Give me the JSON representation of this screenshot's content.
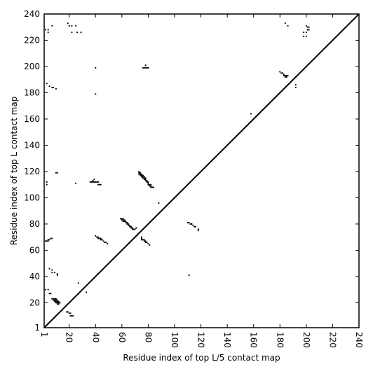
{
  "chart_data": {
    "type": "scatter",
    "title": "",
    "xlabel": "Residue index of top L/5 contact map",
    "ylabel": "Residue index of top L contact map",
    "xlim": [
      1,
      240
    ],
    "ylim": [
      1,
      240
    ],
    "x_ticks": [
      1,
      20,
      40,
      60,
      80,
      100,
      120,
      140,
      160,
      180,
      200,
      220,
      240
    ],
    "y_ticks": [
      1,
      20,
      40,
      60,
      80,
      100,
      120,
      140,
      160,
      180,
      200,
      220,
      240
    ],
    "grid": false,
    "marker": "square",
    "marker_color": "#000000",
    "diagonal_line": true,
    "series": [
      {
        "points": [
          [
            2,
            228
          ],
          [
            4,
            228
          ],
          [
            4,
            226
          ],
          [
            7,
            231
          ],
          [
            19,
            233
          ],
          [
            20,
            231
          ],
          [
            22,
            231
          ],
          [
            22,
            226
          ],
          [
            25,
            231
          ],
          [
            26,
            226
          ],
          [
            29,
            226
          ],
          [
            40,
            199
          ],
          [
            40,
            179
          ],
          [
            3,
            187
          ],
          [
            5,
            185
          ],
          [
            7,
            184
          ],
          [
            8,
            184
          ],
          [
            10,
            183
          ],
          [
            76,
            199
          ],
          [
            77,
            199
          ],
          [
            78,
            199
          ],
          [
            79,
            199
          ],
          [
            80,
            199
          ],
          [
            78,
            201
          ],
          [
            180,
            196
          ],
          [
            181,
            195
          ],
          [
            182,
            195
          ],
          [
            183,
            194
          ],
          [
            183,
            193
          ],
          [
            184,
            193
          ],
          [
            185,
            193
          ],
          [
            186,
            193
          ],
          [
            184,
            192
          ],
          [
            185,
            192
          ],
          [
            192,
            184
          ],
          [
            192,
            186
          ],
          [
            184,
            233
          ],
          [
            186,
            231
          ],
          [
            198,
            223
          ],
          [
            198,
            226
          ],
          [
            200,
            223
          ],
          [
            200,
            226
          ],
          [
            200,
            231
          ],
          [
            201,
            230
          ],
          [
            202,
            230
          ],
          [
            201,
            228
          ],
          [
            202,
            228
          ],
          [
            158,
            164
          ],
          [
            10,
            119
          ],
          [
            11,
            119
          ],
          [
            3,
            112
          ],
          [
            3,
            110
          ],
          [
            25,
            111
          ],
          [
            36,
            112
          ],
          [
            37,
            112
          ],
          [
            38,
            112
          ],
          [
            39,
            112
          ],
          [
            40,
            112
          ],
          [
            41,
            112
          ],
          [
            42,
            112
          ],
          [
            38,
            113
          ],
          [
            39,
            114
          ],
          [
            42,
            110
          ],
          [
            43,
            110
          ],
          [
            44,
            110
          ],
          [
            73,
            120
          ],
          [
            73,
            119
          ],
          [
            73,
            118
          ],
          [
            74,
            119
          ],
          [
            74,
            118
          ],
          [
            74,
            117
          ],
          [
            75,
            118
          ],
          [
            75,
            117
          ],
          [
            75,
            116
          ],
          [
            76,
            117
          ],
          [
            76,
            116
          ],
          [
            76,
            115
          ],
          [
            77,
            116
          ],
          [
            77,
            115
          ],
          [
            77,
            114
          ],
          [
            78,
            115
          ],
          [
            78,
            114
          ],
          [
            78,
            113
          ],
          [
            79,
            113
          ],
          [
            79,
            112
          ],
          [
            80,
            112
          ],
          [
            80,
            111
          ],
          [
            80,
            110
          ],
          [
            81,
            110
          ],
          [
            81,
            109
          ],
          [
            82,
            110
          ],
          [
            82,
            109
          ],
          [
            82,
            108
          ],
          [
            83,
            108
          ],
          [
            84,
            108
          ],
          [
            88,
            96
          ],
          [
            59,
            84
          ],
          [
            60,
            84
          ],
          [
            61,
            84
          ],
          [
            60,
            83
          ],
          [
            61,
            83
          ],
          [
            62,
            83
          ],
          [
            61,
            82
          ],
          [
            62,
            82
          ],
          [
            63,
            82
          ],
          [
            63,
            81
          ],
          [
            64,
            81
          ],
          [
            64,
            80
          ],
          [
            65,
            80
          ],
          [
            65,
            79
          ],
          [
            66,
            79
          ],
          [
            66,
            78
          ],
          [
            67,
            78
          ],
          [
            67,
            77
          ],
          [
            68,
            77
          ],
          [
            68,
            76
          ],
          [
            69,
            76
          ],
          [
            70,
            76
          ],
          [
            71,
            77
          ],
          [
            110,
            81
          ],
          [
            111,
            81
          ],
          [
            112,
            80
          ],
          [
            113,
            80
          ],
          [
            114,
            79
          ],
          [
            115,
            78
          ],
          [
            116,
            78
          ],
          [
            118,
            76
          ],
          [
            118,
            75
          ],
          [
            40,
            71
          ],
          [
            41,
            70
          ],
          [
            42,
            70
          ],
          [
            42,
            69
          ],
          [
            43,
            69
          ],
          [
            44,
            69
          ],
          [
            44,
            68
          ],
          [
            45,
            68
          ],
          [
            46,
            67
          ],
          [
            47,
            66
          ],
          [
            48,
            66
          ],
          [
            49,
            65
          ],
          [
            2,
            67
          ],
          [
            3,
            67
          ],
          [
            4,
            67
          ],
          [
            4,
            68
          ],
          [
            5,
            68
          ],
          [
            6,
            69
          ],
          [
            7,
            69
          ],
          [
            75,
            70
          ],
          [
            75,
            69
          ],
          [
            75,
            68
          ],
          [
            76,
            68
          ],
          [
            77,
            68
          ],
          [
            77,
            67
          ],
          [
            78,
            67
          ],
          [
            78,
            66
          ],
          [
            79,
            66
          ],
          [
            80,
            65
          ],
          [
            81,
            64
          ],
          [
            111,
            41
          ],
          [
            5,
            46
          ],
          [
            7,
            45
          ],
          [
            7,
            43
          ],
          [
            9,
            43
          ],
          [
            11,
            42
          ],
          [
            11,
            41
          ],
          [
            27,
            35
          ],
          [
            33,
            28
          ],
          [
            2,
            30
          ],
          [
            4,
            30
          ],
          [
            5,
            27
          ],
          [
            6,
            27
          ],
          [
            7,
            23
          ],
          [
            8,
            23
          ],
          [
            9,
            23
          ],
          [
            10,
            23
          ],
          [
            8,
            22
          ],
          [
            9,
            22
          ],
          [
            10,
            22
          ],
          [
            11,
            22
          ],
          [
            9,
            21
          ],
          [
            10,
            21
          ],
          [
            11,
            21
          ],
          [
            12,
            21
          ],
          [
            10,
            20
          ],
          [
            11,
            20
          ],
          [
            12,
            20
          ],
          [
            13,
            20
          ],
          [
            11,
            19
          ],
          [
            12,
            19
          ],
          [
            18,
            13
          ],
          [
            19,
            13
          ],
          [
            20,
            12
          ],
          [
            21,
            12
          ],
          [
            21,
            10
          ],
          [
            22,
            10
          ],
          [
            23,
            10
          ]
        ]
      }
    ]
  }
}
